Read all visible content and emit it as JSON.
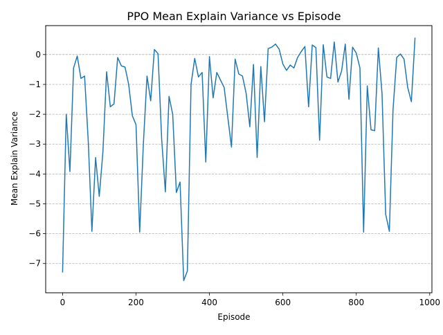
{
  "chart_data": {
    "type": "line",
    "title": "PPO Mean Explain Variance vs Episode",
    "xlabel": "Episode",
    "ylabel": "Mean Explain Variance",
    "xlim": [
      -46,
      1006
    ],
    "ylim": [
      -7.98,
      0.97
    ],
    "xticks": [
      0,
      200,
      400,
      600,
      800,
      1000
    ],
    "yticks": [
      0,
      -1,
      -2,
      -3,
      -4,
      -5,
      -6,
      -7
    ],
    "xtick_labels": [
      "0",
      "200",
      "400",
      "600",
      "800",
      "1000"
    ],
    "ytick_labels": [
      "0",
      "−1",
      "−2",
      "−3",
      "−4",
      "−5",
      "−6",
      "−7"
    ],
    "grid": {
      "y": true,
      "x": false,
      "style": "dashed"
    },
    "line_color": "#1f77b4",
    "series": [
      {
        "x": [
          0,
          10,
          20,
          30,
          40,
          50,
          60,
          70,
          80,
          90,
          100,
          110,
          120,
          130,
          140,
          150,
          160,
          170,
          180,
          190,
          200,
          210,
          220,
          230,
          240,
          250,
          260,
          270,
          280,
          290,
          300,
          310,
          320,
          330,
          340,
          350,
          360,
          370,
          380,
          390,
          400,
          410,
          420,
          430,
          440,
          450,
          460,
          470,
          480,
          490,
          500,
          510,
          520,
          530,
          540,
          550,
          560,
          570,
          580,
          590,
          600,
          610,
          620,
          630,
          640,
          650,
          660,
          670,
          680,
          690,
          700,
          710,
          720,
          730,
          740,
          750,
          760,
          770,
          780,
          790,
          800,
          810,
          820,
          830,
          840,
          850,
          860,
          870,
          880,
          890,
          900,
          910,
          920,
          930,
          940,
          950,
          960
        ],
        "y": [
          -7.3,
          -2.0,
          -3.92,
          -0.45,
          -0.05,
          -0.8,
          -0.72,
          -2.9,
          -5.92,
          -3.45,
          -4.75,
          -3.25,
          -0.58,
          -1.75,
          -1.65,
          -0.1,
          -0.38,
          -0.42,
          -1.0,
          -2.05,
          -2.35,
          -5.95,
          -3.0,
          -0.72,
          -1.55,
          0.17,
          0.03,
          -2.85,
          -4.6,
          -1.4,
          -2.0,
          -4.62,
          -4.27,
          -7.57,
          -7.25,
          -1.0,
          -0.13,
          -0.75,
          -0.6,
          -3.6,
          -0.07,
          -1.45,
          -0.6,
          -0.85,
          -1.1,
          -2.1,
          -3.1,
          -0.15,
          -0.65,
          -0.72,
          -1.3,
          -2.42,
          -0.33,
          -3.45,
          -0.4,
          -2.25,
          0.2,
          0.25,
          0.35,
          0.18,
          -0.32,
          -0.53,
          -0.35,
          -0.45,
          -0.1,
          0.1,
          0.27,
          -1.75,
          0.32,
          0.23,
          -2.87,
          0.33,
          -0.75,
          -0.8,
          0.42,
          -0.92,
          -0.55,
          0.35,
          -1.5,
          0.25,
          0.05,
          -0.45,
          -5.95,
          -1.05,
          -2.52,
          -2.55,
          0.22,
          -1.3,
          -5.35,
          -5.92,
          -1.85,
          -0.1,
          0.02,
          -0.15,
          -1.1,
          -1.58,
          0.57
        ]
      }
    ]
  }
}
